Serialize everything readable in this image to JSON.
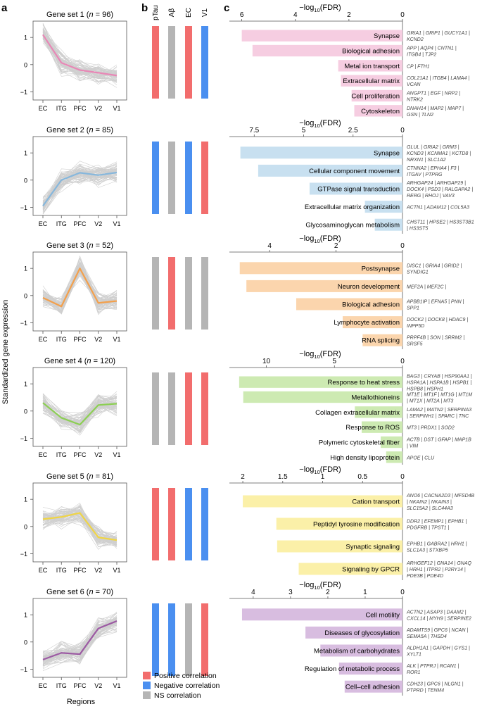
{
  "panel_labels": [
    "a",
    "b",
    "c"
  ],
  "y_axis_label": "Standardized gene expression",
  "x_axis_label": "Regions",
  "regions": [
    "EC",
    "ITG",
    "PFC",
    "V2",
    "V1"
  ],
  "correlation_columns": [
    "pTau",
    "Aβ",
    "EC",
    "V1"
  ],
  "fdr_axis_label": "−log10(FDR)",
  "legend": [
    {
      "key": "pos",
      "label": "Positive correlation",
      "color": "#f26d6d"
    },
    {
      "key": "neg",
      "label": "Negative correlation",
      "color": "#4a8ff0"
    },
    {
      "key": "ns",
      "label": "NS correlation",
      "color": "#b5b5b5"
    }
  ],
  "colors": {
    "grey_traces": "#cfcfcf"
  },
  "chart_data": {
    "type": "line",
    "ylim": [
      -1.3,
      1.6
    ],
    "yticks": [
      -1,
      0,
      1
    ],
    "gene_sets": [
      {
        "title": "Gene set 1",
        "n": 96,
        "color": "#e887b6",
        "bar_color": "#f6cde1",
        "trend": [
          1.1,
          0.07,
          -0.2,
          -0.3,
          -0.4
        ],
        "correlations": [
          "pos",
          "ns",
          "pos",
          "neg"
        ],
        "fdr_max": 6.2,
        "fdr_ticks": [
          6,
          4,
          2,
          0
        ],
        "terms": [
          {
            "name": "Synapse",
            "value": 6.0,
            "genes": [
              "GRIA1 | GRIP1 | GUCY1A1 |",
              "KCND2"
            ]
          },
          {
            "name": "Biological adhesion",
            "value": 5.6,
            "genes": [
              "APP | AQP4 | CNTN1 |",
              "ITGB4 | TJP2"
            ]
          },
          {
            "name": "Metal ion transport",
            "value": 2.4,
            "genes": [
              "CP | FTH1"
            ]
          },
          {
            "name": "Extracellular matrix",
            "value": 2.3,
            "genes": [
              "COL21A1 | ITGB4 | LAMA4 |",
              "VCAN"
            ]
          },
          {
            "name": "Cell proliferation",
            "value": 1.9,
            "genes": [
              "ANGPT1 | EGF | NRP2 |",
              "NTRK2"
            ]
          },
          {
            "name": "Cytoskeleton",
            "value": 1.8,
            "genes": [
              "DNAH14 | MAP2 | MAP7 |",
              "GSN | TLN2"
            ]
          }
        ]
      },
      {
        "title": "Gene set 2",
        "n": 85,
        "color": "#86b7dc",
        "bar_color": "#c8e0f0",
        "trend": [
          -0.95,
          0.0,
          0.27,
          0.18,
          0.28
        ],
        "correlations": [
          "neg",
          "ns",
          "neg",
          "pos"
        ],
        "fdr_max": 8.4,
        "fdr_ticks": [
          7.5,
          5.0,
          2.5,
          0
        ],
        "terms": [
          {
            "name": "Synapse",
            "value": 8.2,
            "genes": [
              "GLUL | GRIA2 | GRM3 |",
              "KCND3 | KCNMA1 | KCTD8 |",
              "NRXN1 | SLC1A2"
            ]
          },
          {
            "name": "Cellular component movement",
            "value": 7.3,
            "genes": [
              "CTNNA2 | EPHA4 | F3 |",
              "ITGAV | PTPRG"
            ]
          },
          {
            "name": "GTPase  signal transduction",
            "value": 4.7,
            "genes": [
              "ARHGAP24 | ARHGAP29 |",
              "DOCK4 | PSD3 | RALGAPA2 |",
              "RERG | RHOJ | VAV3"
            ]
          },
          {
            "name": "Extracellular matrix  organization",
            "value": 1.9,
            "genes": [
              "ACTN1 | ADAM12 | COL5A3"
            ]
          },
          {
            "name": "Glycosaminoglycan metabolism",
            "value": 1.4,
            "genes": [
              "CHST11 | HPSE2 | HS3ST3B1",
              "| HS3ST5"
            ]
          }
        ]
      },
      {
        "title": "Gene set 3",
        "n": 52,
        "color": "#f3a04c",
        "bar_color": "#fbd5ad",
        "trend": [
          -0.08,
          -0.4,
          1.0,
          -0.27,
          -0.2
        ],
        "correlations": [
          "ns",
          "pos",
          "ns",
          "ns"
        ],
        "fdr_max": 5.0,
        "fdr_ticks": [
          4,
          2,
          0
        ],
        "terms": [
          {
            "name": "Postsynapse",
            "value": 4.9,
            "genes": [
              "DISC1 | GRIA4 | GRID2 |",
              "SYNDIG1"
            ]
          },
          {
            "name": "Neuron development",
            "value": 4.7,
            "genes": [
              "MEF2A | MEF2C |"
            ]
          },
          {
            "name": "Biological adhesion",
            "value": 3.2,
            "genes": [
              "APBB1IP | EFNA5 | PNN |",
              "SPP1"
            ]
          },
          {
            "name": "Lymphocyte activation",
            "value": 1.8,
            "genes": [
              "DOCK2 | DOCK8 | HDAC9 |",
              "INPP5D"
            ]
          },
          {
            "name": "RNA splicing",
            "value": 1.2,
            "genes": [
              "PRPF4B | SON | SRRM2 |",
              "SRSF5"
            ]
          }
        ]
      },
      {
        "title": "Gene set 4",
        "n": 120,
        "color": "#8ccf53",
        "bar_color": "#cdeab2",
        "trend": [
          0.3,
          -0.25,
          -0.5,
          0.22,
          0.27
        ],
        "correlations": [
          "ns",
          "ns",
          "pos",
          "pos"
        ],
        "fdr_max": 12.2,
        "fdr_ticks": [
          10,
          5,
          0
        ],
        "terms": [
          {
            "name": "Response to heat stress",
            "value": 12.0,
            "genes": [
              "BAG3 | CRYAB | HSP90AA1 |",
              "HSPA1A | HSPA1B | HSPB1 |",
              "HSPB8 | HSPH1"
            ]
          },
          {
            "name": "Metallothioneins",
            "value": 11.7,
            "genes": [
              "MT1E | MT1F | MT1G | MT1M",
              "| MT1X | MT2A | MT3"
            ]
          },
          {
            "name": "Collagen  extracellular matrix",
            "value": 3.5,
            "genes": [
              "LAMA2 | MATN2 | SERPINA3",
              "| SERPINH1 | SPARC | TNC"
            ]
          },
          {
            "name": "Response to ROS",
            "value": 3.0,
            "genes": [
              "MT3 | PRDX1 | SOD2"
            ]
          },
          {
            "name": "Polymeric cytoskeletal fiber",
            "value": 1.6,
            "genes": [
              "ACTB | DST | GFAP | MAP1B",
              "| VIM"
            ]
          },
          {
            "name": "High density lipoprotein",
            "value": 1.2,
            "genes": [
              "APOE | CLU"
            ]
          }
        ]
      },
      {
        "title": "Gene set 5",
        "n": 81,
        "color": "#f0d545",
        "bar_color": "#fbf0a8",
        "trend": [
          0.27,
          0.35,
          0.5,
          -0.4,
          -0.5
        ],
        "correlations": [
          "pos",
          "pos",
          "neg",
          "neg"
        ],
        "fdr_max": 2.08,
        "fdr_ticks": [
          2.0,
          1.5,
          1.0,
          0.5,
          0
        ],
        "terms": [
          {
            "name": "Cation transport",
            "value": 2.0,
            "genes": [
              "ANO6 | CACNA2D3 | MFSD4B",
              "| NKAIN2 | NKAIN3 |",
              "SLC15A2 | SLC44A3"
            ]
          },
          {
            "name": "Peptidyl tyrosine modification",
            "value": 1.58,
            "genes": [
              "DDR2 | EFEMP1 | EPHB1 |",
              "PDGFRB | TPST1 |"
            ]
          },
          {
            "name": "Synaptic signaling",
            "value": 1.57,
            "genes": [
              "EPHB1 | GABRA2 | HRH1 |",
              "SLC1A3 | STXBP5"
            ]
          },
          {
            "name": "Signaling by GPCR",
            "value": 1.3,
            "genes": [
              "ARHGEF12 | GNA14 | GNAQ",
              "| HRH1 | ITPR2 | P2RY14 |",
              "PDE3B | PDE4D"
            ]
          }
        ]
      },
      {
        "title": "Gene set 6",
        "n": 70,
        "color": "#9c5aa3",
        "bar_color": "#d8bde0",
        "trend": [
          -0.65,
          -0.4,
          -0.45,
          0.5,
          0.77
        ],
        "correlations": [
          "neg",
          "neg",
          "ns",
          "pos"
        ],
        "fdr_max": 4.45,
        "fdr_ticks": [
          4,
          3,
          2,
          1,
          0
        ],
        "terms": [
          {
            "name": "Cell motility",
            "value": 4.3,
            "genes": [
              "ACTN2 | ASAP3 | DAAM2 |",
              "CXCL14 | MYH9 | SERPINE2"
            ]
          },
          {
            "name": "Diseases of glycosylation",
            "value": 2.6,
            "genes": [
              "ADAMTS9 | GPC6 | NCAN |",
              "SEMA5A | THSD4"
            ]
          },
          {
            "name": "Metabolism of carbohydrates",
            "value": 2.2,
            "genes": [
              "ALDH1A1 | GAPDH | GYS1 |",
              "XYLT1"
            ]
          },
          {
            "name": "Regulation of metabolic process",
            "value": 1.7,
            "genes": [
              "ALK | PTPRJ | RCAN1 |",
              "ROR1"
            ]
          },
          {
            "name": "Cell–cell adhesion",
            "value": 1.55,
            "genes": [
              "CDH23 | GPC6 | NLGN1 |",
              "PTPRD | TENM4"
            ]
          }
        ]
      }
    ]
  }
}
